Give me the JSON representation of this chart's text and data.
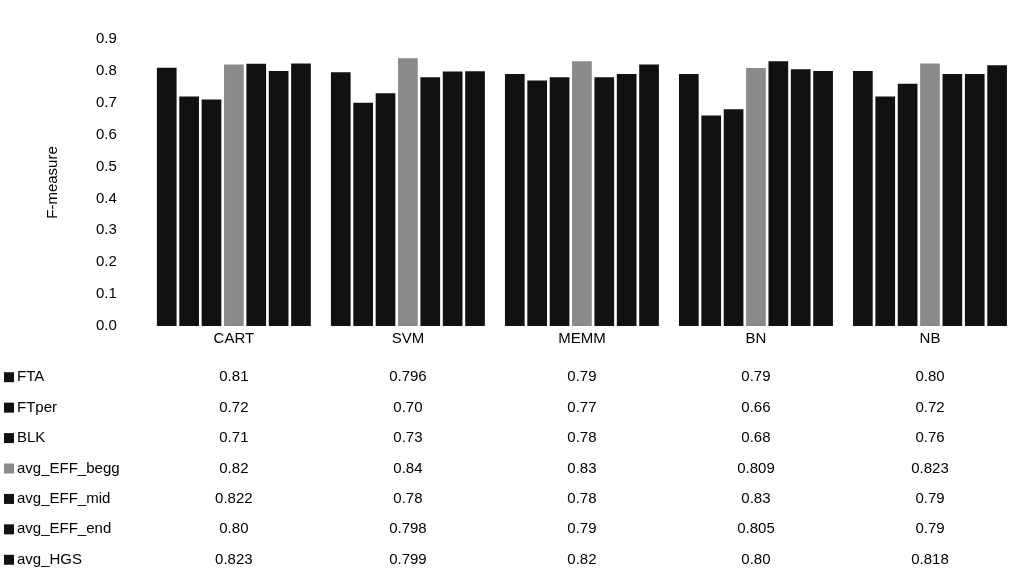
{
  "chart_data": {
    "type": "bar",
    "ylabel": "F-measure",
    "categories": [
      "CART",
      "SVM",
      "MEMM",
      "BN",
      "NB"
    ],
    "series": [
      {
        "name": "FTA",
        "color": "#111111",
        "values": [
          0.81,
          0.796,
          0.79,
          0.79,
          0.8
        ],
        "value_labels": [
          "0.81",
          "0.796",
          "0.79",
          "0.79",
          "0.80"
        ]
      },
      {
        "name": "FTper",
        "color": "#111111",
        "values": [
          0.72,
          0.7,
          0.77,
          0.66,
          0.72
        ],
        "value_labels": [
          "0.72",
          "0.70",
          "0.77",
          "0.66",
          "0.72"
        ]
      },
      {
        "name": "BLK",
        "color": "#111111",
        "values": [
          0.71,
          0.73,
          0.78,
          0.68,
          0.76
        ],
        "value_labels": [
          "0.71",
          "0.73",
          "0.78",
          "0.68",
          "0.76"
        ]
      },
      {
        "name": "avg_EFF_begg",
        "color": "#8a8a8a",
        "values": [
          0.82,
          0.84,
          0.83,
          0.809,
          0.823
        ],
        "value_labels": [
          "0.82",
          "0.84",
          "0.83",
          "0.809",
          "0.823"
        ]
      },
      {
        "name": "avg_EFF_mid",
        "color": "#111111",
        "values": [
          0.822,
          0.78,
          0.78,
          0.83,
          0.79
        ],
        "value_labels": [
          "0.822",
          "0.78",
          "0.78",
          "0.83",
          "0.79"
        ]
      },
      {
        "name": "avg_EFF_end",
        "color": "#111111",
        "values": [
          0.8,
          0.798,
          0.79,
          0.805,
          0.79
        ],
        "value_labels": [
          "0.80",
          "0.798",
          "0.79",
          "0.805",
          "0.79"
        ]
      },
      {
        "name": "avg_HGS",
        "color": "#111111",
        "values": [
          0.823,
          0.799,
          0.82,
          0.8,
          0.818
        ],
        "value_labels": [
          "0.823",
          "0.799",
          "0.82",
          "0.80",
          "0.818"
        ]
      }
    ],
    "ylim": [
      0,
      0.9
    ],
    "yticks": [
      {
        "value": 0,
        "label": "0.0"
      },
      0.1,
      0.2,
      0.3,
      0.4,
      0.5,
      0.6,
      0.7,
      0.8,
      0.9
    ],
    "grid": false,
    "legend": "bottom left"
  }
}
